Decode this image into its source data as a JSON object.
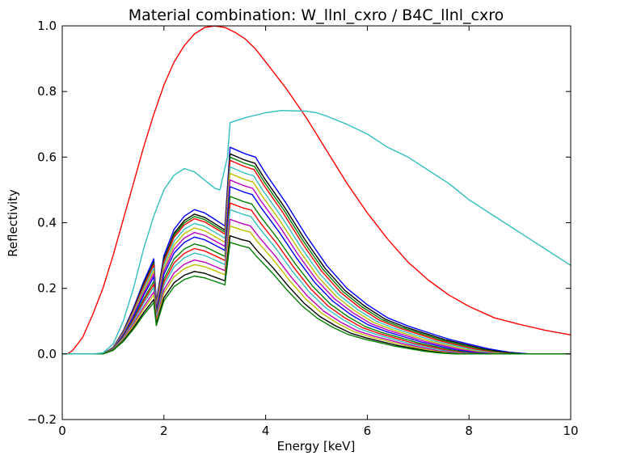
{
  "chart_data": {
    "type": "line",
    "title": "Material combination: W_llnl_cxro / B4C_llnl_cxro",
    "xlabel": "Energy [keV]",
    "ylabel": "Reflectivity",
    "xlim": [
      0,
      10
    ],
    "ylim": [
      -0.2,
      1.0
    ],
    "xticks": [
      0,
      2,
      4,
      6,
      8,
      10
    ],
    "xtick_labels": [
      "0",
      "2",
      "4",
      "6",
      "8",
      "10"
    ],
    "yticks": [
      -0.2,
      0.0,
      0.2,
      0.4,
      0.6,
      0.8,
      1.0
    ],
    "ytick_labels": [
      "−0.2",
      "0.0",
      "0.2",
      "0.4",
      "0.6",
      "0.8",
      "1.0"
    ],
    "grid": false,
    "legend": "none",
    "series": [
      {
        "color": "#ff0000",
        "points": [
          [
            0.1,
            0.0
          ],
          [
            0.2,
            0.01
          ],
          [
            0.4,
            0.05
          ],
          [
            0.6,
            0.12
          ],
          [
            0.8,
            0.2
          ],
          [
            1.0,
            0.3
          ],
          [
            1.2,
            0.41
          ],
          [
            1.4,
            0.52
          ],
          [
            1.6,
            0.63
          ],
          [
            1.8,
            0.73
          ],
          [
            2.0,
            0.82
          ],
          [
            2.2,
            0.89
          ],
          [
            2.4,
            0.94
          ],
          [
            2.6,
            0.975
          ],
          [
            2.8,
            0.995
          ],
          [
            3.0,
            1.0
          ],
          [
            3.2,
            0.995
          ],
          [
            3.4,
            0.98
          ],
          [
            3.6,
            0.96
          ],
          [
            3.8,
            0.93
          ],
          [
            4.0,
            0.89
          ],
          [
            4.4,
            0.81
          ],
          [
            4.8,
            0.72
          ],
          [
            5.2,
            0.62
          ],
          [
            5.6,
            0.52
          ],
          [
            6.0,
            0.43
          ],
          [
            6.4,
            0.35
          ],
          [
            6.8,
            0.28
          ],
          [
            7.2,
            0.225
          ],
          [
            7.6,
            0.18
          ],
          [
            8.0,
            0.145
          ],
          [
            8.5,
            0.11
          ],
          [
            9.0,
            0.09
          ],
          [
            9.5,
            0.072
          ],
          [
            10.0,
            0.058
          ]
        ]
      },
      {
        "color": "#33bfbf",
        "points": [
          [
            0.0,
            0.0
          ],
          [
            0.6,
            0.0
          ],
          [
            0.8,
            0.003
          ],
          [
            1.0,
            0.03
          ],
          [
            1.2,
            0.1
          ],
          [
            1.4,
            0.2
          ],
          [
            1.6,
            0.32
          ],
          [
            1.8,
            0.42
          ],
          [
            2.0,
            0.5
          ],
          [
            2.2,
            0.545
          ],
          [
            2.4,
            0.565
          ],
          [
            2.6,
            0.555
          ],
          [
            2.8,
            0.53
          ],
          [
            3.0,
            0.505
          ],
          [
            3.1,
            0.5
          ],
          [
            3.25,
            0.6
          ],
          [
            3.3,
            0.705
          ],
          [
            3.6,
            0.72
          ],
          [
            4.0,
            0.735
          ],
          [
            4.3,
            0.742
          ],
          [
            4.8,
            0.74
          ],
          [
            5.0,
            0.735
          ],
          [
            5.2,
            0.725
          ],
          [
            5.6,
            0.7
          ],
          [
            6.0,
            0.67
          ],
          [
            6.4,
            0.63
          ],
          [
            6.8,
            0.6
          ],
          [
            7.2,
            0.56
          ],
          [
            7.6,
            0.52
          ],
          [
            8.0,
            0.47
          ],
          [
            8.5,
            0.42
          ],
          [
            9.0,
            0.37
          ],
          [
            9.5,
            0.32
          ],
          [
            10.0,
            0.27
          ]
        ]
      }
    ],
    "family": {
      "colors": [
        "#0000ff",
        "#000000",
        "#008000",
        "#ff0000",
        "#33bfbf",
        "#bfbf00",
        "#bf00bf",
        "#0000ff",
        "#008000",
        "#ff0000",
        "#33bfbf",
        "#bf00bf",
        "#bfbf00",
        "#000000",
        "#008000"
      ],
      "base_points": [
        [
          0.0,
          0.0
        ],
        [
          0.8,
          0.0
        ],
        [
          1.0,
          0.02
        ],
        [
          1.2,
          0.07
        ],
        [
          1.4,
          0.14
        ],
        [
          1.6,
          0.22
        ],
        [
          1.8,
          0.29
        ],
        [
          1.85,
          0.16
        ],
        [
          2.0,
          0.3
        ],
        [
          2.2,
          0.38
        ],
        [
          2.4,
          0.42
        ],
        [
          2.6,
          0.44
        ],
        [
          2.8,
          0.43
        ],
        [
          3.0,
          0.41
        ],
        [
          3.2,
          0.39
        ],
        [
          3.3,
          0.63
        ],
        [
          3.6,
          0.61
        ],
        [
          3.8,
          0.6
        ],
        [
          4.0,
          0.55
        ],
        [
          4.4,
          0.46
        ],
        [
          4.8,
          0.36
        ],
        [
          5.2,
          0.27
        ],
        [
          5.6,
          0.2
        ],
        [
          6.0,
          0.15
        ],
        [
          6.4,
          0.11
        ],
        [
          6.8,
          0.085
        ],
        [
          7.2,
          0.065
        ],
        [
          7.6,
          0.045
        ],
        [
          8.0,
          0.03
        ],
        [
          8.4,
          0.015
        ],
        [
          8.8,
          0.005
        ],
        [
          9.2,
          0.0
        ],
        [
          10.0,
          0.0
        ]
      ],
      "peak_values": [
        0.63,
        0.61,
        0.6,
        0.59,
        0.57,
        0.55,
        0.53,
        0.51,
        0.48,
        0.46,
        0.44,
        0.41,
        0.39,
        0.36,
        0.34
      ],
      "notes_energy_shift": [
        0,
        -0.1,
        -0.2,
        -0.3,
        -0.4,
        -0.5,
        -0.6,
        -0.7,
        -0.8,
        -0.9,
        -1.0,
        -1.1,
        -1.2,
        -1.3,
        -1.4
      ]
    }
  }
}
